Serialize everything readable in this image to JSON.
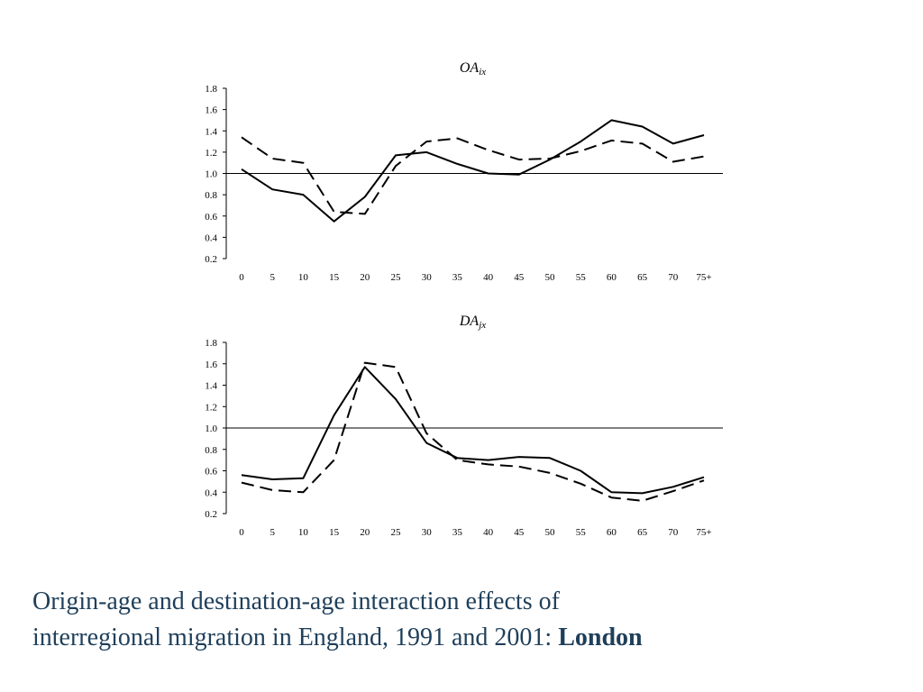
{
  "caption": {
    "line1": "Origin-age and destination-age interaction effects of",
    "line2": "interregional migration in England, 1991 and 2001: ",
    "bold": "London"
  },
  "chart_data": [
    {
      "type": "line",
      "title_main": "OA",
      "title_sub": "ix",
      "categories": [
        "0",
        "5",
        "10",
        "15",
        "20",
        "25",
        "30",
        "35",
        "40",
        "45",
        "50",
        "55",
        "60",
        "65",
        "70",
        "75+"
      ],
      "ylim": [
        0.2,
        1.8
      ],
      "yticks": [
        "0.2",
        "0.4",
        "0.6",
        "0.8",
        "1.0",
        "1.2",
        "1.4",
        "1.6",
        "1.8"
      ],
      "reference_line": 1.0,
      "grid": false,
      "series": [
        {
          "style": "solid",
          "values": [
            1.04,
            0.85,
            0.8,
            0.55,
            0.78,
            1.17,
            1.2,
            1.09,
            1.0,
            0.99,
            1.13,
            1.3,
            1.5,
            1.44,
            1.28,
            1.36
          ]
        },
        {
          "style": "dashed",
          "values": [
            1.34,
            1.14,
            1.1,
            0.64,
            0.62,
            1.07,
            1.3,
            1.33,
            1.22,
            1.13,
            1.14,
            1.21,
            1.31,
            1.28,
            1.11,
            1.16
          ]
        }
      ]
    },
    {
      "type": "line",
      "title_main": "DA",
      "title_sub": "jx",
      "categories": [
        "0",
        "5",
        "10",
        "15",
        "20",
        "25",
        "30",
        "35",
        "40",
        "45",
        "50",
        "55",
        "60",
        "65",
        "70",
        "75+"
      ],
      "ylim": [
        0.2,
        1.8
      ],
      "yticks": [
        "0.2",
        "0.4",
        "0.6",
        "0.8",
        "1.0",
        "1.2",
        "1.4",
        "1.6",
        "1.8"
      ],
      "reference_line": 1.0,
      "grid": false,
      "series": [
        {
          "style": "solid",
          "values": [
            0.56,
            0.52,
            0.53,
            1.12,
            1.57,
            1.27,
            0.86,
            0.72,
            0.7,
            0.73,
            0.72,
            0.6,
            0.4,
            0.39,
            0.45,
            0.54
          ]
        },
        {
          "style": "dashed",
          "values": [
            0.49,
            0.42,
            0.4,
            0.7,
            1.61,
            1.57,
            0.95,
            0.7,
            0.66,
            0.64,
            0.58,
            0.48,
            0.35,
            0.32,
            0.41,
            0.51
          ]
        }
      ]
    }
  ]
}
